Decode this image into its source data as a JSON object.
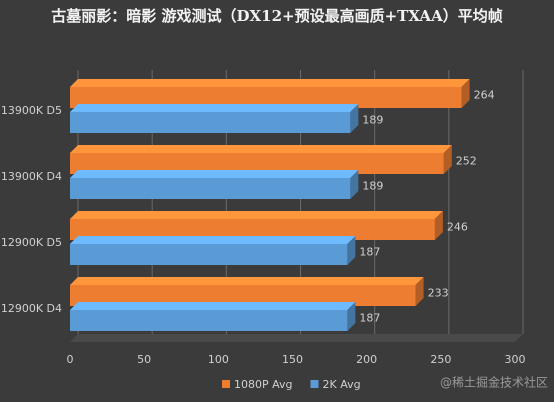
{
  "chart_data": {
    "type": "hbar",
    "title": "古墓丽影：暗影 游戏测试（DX12+预设最高画质+TXAA）平均帧",
    "categories": [
      "13900K D5",
      "13900K D4",
      "12900K D5",
      "12900K D4"
    ],
    "series": [
      {
        "name": "1080P Avg",
        "color": "#ed7d31",
        "values": [
          264,
          252,
          246,
          233
        ]
      },
      {
        "name": "2K Avg",
        "color": "#5b9bd5",
        "values": [
          189,
          189,
          187,
          187
        ]
      }
    ],
    "xlim": [
      0,
      300
    ],
    "xticks": [
      0,
      50,
      100,
      150,
      200,
      250,
      300
    ],
    "grid": true,
    "legend": "bottom",
    "watermark": "@稀土掘金技术社区"
  }
}
